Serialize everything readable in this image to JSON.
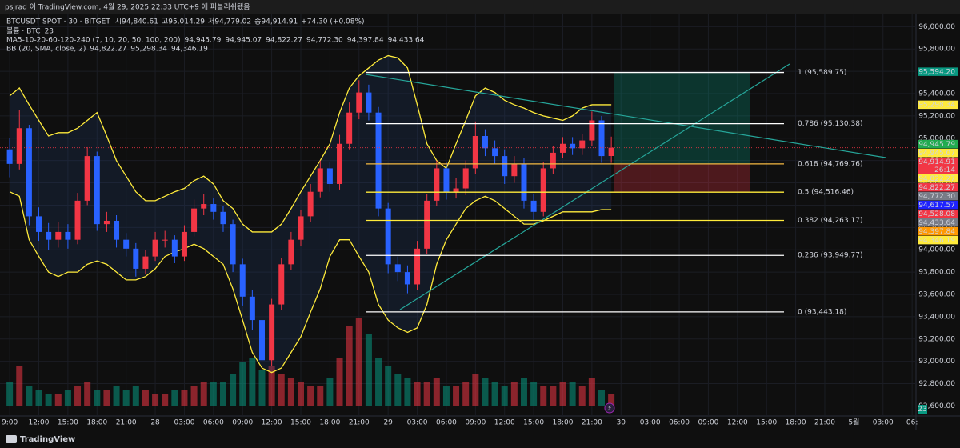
{
  "header": {
    "publisher": "psjrad 이 TradingView.com, 4월 29, 2025 22:33 UTC+9 에 퍼블리쉬됐음"
  },
  "legend": {
    "symbol": "BTCUSDT SPOT · 30 · BITGET",
    "ohlc": [
      {
        "label": "시",
        "value": "94,840.61"
      },
      {
        "label": "고",
        "value": "95,014.29"
      },
      {
        "label": "저",
        "value": "94,779.02"
      },
      {
        "label": "종",
        "value": "94,914.91"
      }
    ],
    "change": "+74.30 (+0.08%)",
    "volume": "볼륨 · BTC",
    "ma": {
      "name": "MA5-10-20-60-120-240 (7, 10, 20, 50, 100, 200)",
      "values": [
        {
          "text": "94,945.79",
          "color": "#22ab94"
        },
        {
          "text": "94,945.07",
          "color": "#ffeb3b"
        },
        {
          "text": "94,822.27",
          "color": "#f23645"
        },
        {
          "text": "94,772.30",
          "color": "#2a2e9a"
        },
        {
          "text": "94,397.84",
          "color": "#ff9800"
        },
        {
          "text": "94,433.64",
          "color": "#787b86"
        }
      ]
    },
    "bb": {
      "name": "BB (20, SMA, close, 2)",
      "values": [
        {
          "text": "94,822.27",
          "color": "#ffeb3b"
        },
        {
          "text": "95,298.34",
          "color": "#ffeb3b"
        },
        {
          "text": "94,346.19",
          "color": "#ffeb3b"
        }
      ]
    }
  },
  "chart_data": {
    "type": "candlestick",
    "up_color": "#f23645",
    "down_color": "#2962ff",
    "volume_up_color": "#f23645",
    "volume_down_color": "#089981",
    "bb_color": "#ffeb3b",
    "xlim": [
      -1,
      93.4
    ],
    "ylim": [
      92510,
      96110
    ],
    "volume_lim": [
      0,
      180
    ],
    "x": [
      0,
      1,
      2,
      3,
      4,
      5,
      6,
      7,
      8,
      9,
      10,
      11,
      12,
      13,
      14,
      15,
      16,
      17,
      18,
      19,
      20,
      21,
      22,
      23,
      24,
      25,
      26,
      27,
      28,
      29,
      30,
      31,
      32,
      33,
      34,
      35,
      36,
      37,
      38,
      39,
      40,
      41,
      42,
      43,
      44,
      45,
      46,
      47,
      48,
      49,
      50,
      51,
      52,
      53,
      54,
      55,
      56,
      57,
      58,
      59,
      60,
      61,
      62
    ],
    "open": [
      94900,
      94770,
      95090,
      94300,
      94160,
      94090,
      94160,
      94090,
      94440,
      94840,
      94230,
      94260,
      94090,
      94010,
      93830,
      93940,
      94090,
      94090,
      93940,
      94160,
      94370,
      94410,
      94340,
      94230,
      93870,
      93580,
      93370,
      93010,
      93510,
      93870,
      94090,
      94300,
      94520,
      94730,
      94590,
      94950,
      95230,
      95410,
      95230,
      94370,
      93870,
      93800,
      93690,
      94010,
      94440,
      94730,
      94520,
      94550,
      94730,
      95020,
      94910,
      94840,
      94660,
      94770,
      94440,
      94340,
      94730,
      94870,
      94950,
      94910,
      94980,
      95160,
      94840.61
    ],
    "high": [
      95000,
      95250,
      95120,
      94380,
      94240,
      94250,
      94230,
      94510,
      94920,
      94880,
      94340,
      94310,
      94150,
      94060,
      94000,
      94160,
      94170,
      94130,
      94220,
      94450,
      94500,
      94460,
      94390,
      94270,
      93920,
      93640,
      93430,
      93560,
      93930,
      94160,
      94360,
      94590,
      94800,
      94790,
      95030,
      95320,
      95520,
      95480,
      95280,
      94420,
      93940,
      93860,
      94080,
      94500,
      94800,
      94790,
      94640,
      94800,
      95150,
      95080,
      94980,
      94900,
      94840,
      94820,
      94500,
      94790,
      94930,
      95010,
      95010,
      95040,
      95240,
      95200,
      95014.29
    ],
    "low": [
      94650,
      94720,
      94220,
      94080,
      94000,
      94020,
      94010,
      94050,
      94400,
      94170,
      94160,
      94020,
      93940,
      93760,
      93780,
      93900,
      94020,
      93880,
      93900,
      94120,
      94310,
      94270,
      94160,
      93800,
      93500,
      93280,
      92920,
      92960,
      93460,
      93820,
      94030,
      94250,
      94470,
      94520,
      94540,
      94900,
      95170,
      95160,
      94300,
      93790,
      93720,
      93610,
      93640,
      93960,
      94390,
      94450,
      94460,
      94490,
      94680,
      94840,
      94770,
      94590,
      94600,
      94370,
      94270,
      94300,
      94680,
      94820,
      94850,
      94850,
      94930,
      94780,
      94779.02
    ],
    "close": [
      94770,
      95090,
      94300,
      94160,
      94090,
      94160,
      94090,
      94440,
      94840,
      94230,
      94260,
      94090,
      94010,
      93830,
      93940,
      94090,
      94090,
      93940,
      94160,
      94370,
      94410,
      94340,
      94230,
      93870,
      93580,
      93370,
      93010,
      93510,
      93870,
      94090,
      94300,
      94520,
      94730,
      94590,
      94950,
      95230,
      95410,
      95230,
      94370,
      93870,
      93800,
      93690,
      94010,
      94440,
      94730,
      94520,
      94550,
      94730,
      95020,
      94910,
      94840,
      94660,
      94770,
      94440,
      94340,
      94730,
      94870,
      94950,
      94910,
      94980,
      95160,
      94840,
      94914.91
    ],
    "volume": [
      48,
      80,
      40,
      32,
      24,
      24,
      32,
      40,
      48,
      32,
      32,
      40,
      32,
      40,
      32,
      24,
      24,
      32,
      32,
      40,
      48,
      48,
      48,
      64,
      88,
      96,
      72,
      80,
      64,
      56,
      48,
      40,
      40,
      56,
      96,
      160,
      176,
      144,
      96,
      80,
      64,
      56,
      48,
      48,
      56,
      40,
      40,
      48,
      64,
      56,
      48,
      40,
      48,
      56,
      48,
      40,
      40,
      48,
      48,
      40,
      56,
      32,
      23
    ],
    "bb_upper": [
      95380,
      95450,
      95300,
      95160,
      95020,
      95050,
      95050,
      95090,
      95160,
      95230,
      95020,
      94800,
      94660,
      94520,
      94440,
      94440,
      94480,
      94520,
      94550,
      94620,
      94660,
      94590,
      94440,
      94370,
      94230,
      94160,
      94160,
      94160,
      94230,
      94370,
      94520,
      94660,
      94800,
      94950,
      95230,
      95450,
      95560,
      95630,
      95700,
      95740,
      95720,
      95630,
      95300,
      94950,
      94800,
      94730,
      94950,
      95160,
      95380,
      95450,
      95410,
      95340,
      95300,
      95270,
      95230,
      95200,
      95180,
      95160,
      95200,
      95270,
      95300,
      95300,
      95300
    ],
    "bb_lower": [
      94520,
      94480,
      94090,
      93940,
      93800,
      93760,
      93800,
      93800,
      93870,
      93900,
      93870,
      93800,
      93730,
      93730,
      93760,
      93830,
      93940,
      93980,
      94010,
      94050,
      94010,
      93940,
      93870,
      93650,
      93370,
      93080,
      92940,
      92900,
      92940,
      93080,
      93220,
      93440,
      93650,
      93940,
      94090,
      94090,
      93940,
      93800,
      93510,
      93370,
      93300,
      93260,
      93300,
      93510,
      93870,
      94090,
      94230,
      94370,
      94440,
      94480,
      94440,
      94370,
      94300,
      94230,
      94230,
      94260,
      94300,
      94340,
      94340,
      94340,
      94340,
      94360,
      94360
    ],
    "yticks": [
      {
        "value": 96000,
        "label": "96,000.00"
      },
      {
        "value": 95800,
        "label": "95,800.00"
      },
      {
        "value": 95600,
        "label": "95,600.00"
      },
      {
        "value": 95400,
        "label": "95,400.00"
      },
      {
        "value": 95200,
        "label": "95,200.00"
      },
      {
        "value": 95000,
        "label": "95,000.00"
      },
      {
        "value": 94800,
        "label": "94,800.00"
      },
      {
        "value": 94600,
        "label": "94,600.00"
      },
      {
        "value": 94400,
        "label": "94,400.00"
      },
      {
        "value": 94200,
        "label": "94,200.00"
      },
      {
        "value": 94000,
        "label": "94,000.00"
      },
      {
        "value": 93800,
        "label": "93,800.00"
      },
      {
        "value": 93600,
        "label": "93,600.00"
      },
      {
        "value": 93400,
        "label": "93,400.00"
      },
      {
        "value": 93200,
        "label": "93,200.00"
      },
      {
        "value": 93000,
        "label": "93,000.00"
      },
      {
        "value": 92800,
        "label": "92,800.00"
      },
      {
        "value": 92600,
        "label": "92,600.00"
      }
    ],
    "xticks": [
      {
        "value": 0,
        "label": "9:00"
      },
      {
        "value": 3,
        "label": "12:00"
      },
      {
        "value": 6,
        "label": "15:00"
      },
      {
        "value": 9,
        "label": "18:00"
      },
      {
        "value": 12,
        "label": "21:00"
      },
      {
        "value": 15,
        "label": "28"
      },
      {
        "value": 18,
        "label": "03:00"
      },
      {
        "value": 21,
        "label": "06:00"
      },
      {
        "value": 24,
        "label": "09:00"
      },
      {
        "value": 27,
        "label": "12:00"
      },
      {
        "value": 30,
        "label": "15:00"
      },
      {
        "value": 33,
        "label": "18:00"
      },
      {
        "value": 36,
        "label": "21:00"
      },
      {
        "value": 39,
        "label": "29"
      },
      {
        "value": 42,
        "label": "03:00"
      },
      {
        "value": 45,
        "label": "06:00"
      },
      {
        "value": 48,
        "label": "09:00"
      },
      {
        "value": 51,
        "label": "12:00"
      },
      {
        "value": 54,
        "label": "15:00"
      },
      {
        "value": 57,
        "label": "18:00"
      },
      {
        "value": 60,
        "label": "21:00"
      },
      {
        "value": 63,
        "label": "30"
      },
      {
        "value": 66,
        "label": "03:00"
      },
      {
        "value": 69,
        "label": "06:00"
      },
      {
        "value": 72,
        "label": "09:00"
      },
      {
        "value": 75,
        "label": "12:00"
      },
      {
        "value": 78,
        "label": "15:00"
      },
      {
        "value": 81,
        "label": "18:00"
      },
      {
        "value": 84,
        "label": "21:00"
      },
      {
        "value": 87,
        "label": "5월"
      },
      {
        "value": 90,
        "label": "03:00"
      },
      {
        "value": 93,
        "label": "06:"
      }
    ],
    "fib_levels": [
      {
        "value": 95589.75,
        "label": "1 (95,589.75)",
        "color": "#ffffff"
      },
      {
        "value": 95130.38,
        "label": "0.786 (95,130.38)",
        "color": "#ffffff"
      },
      {
        "value": 94769.76,
        "label": "0.618 (94,769.76)",
        "color": "#f5b942"
      },
      {
        "value": 94516.46,
        "label": "0.5 (94,516.46)",
        "color": "#ffeb3b"
      },
      {
        "value": 94263.17,
        "label": "0.382 (94,263.17)",
        "color": "#ffeb3b"
      },
      {
        "value": 93949.77,
        "label": "0.236 (93,949.77)",
        "color": "#ffffff"
      },
      {
        "value": 93443.18,
        "label": "0 (93,443.18)",
        "color": "#ffffff"
      }
    ],
    "countdown": "26:14",
    "price_labels": [
      {
        "value": 95594.2,
        "label": "95,594.20",
        "color": "#089981",
        "text_color": "#ffffff"
      },
      {
        "value": 95298.34,
        "label": "95,298.34",
        "color": "#ffeb3b",
        "text_color": "#000000"
      },
      {
        "value": 94945.79,
        "label": "94,945.79",
        "color": "#22ab50",
        "text_color": "#ffffff"
      },
      {
        "value": 94945.07,
        "label": "94,945.07",
        "color": "#ffeb3b",
        "text_color": "#000000"
      },
      {
        "value": 94914.91,
        "label": "94,914.91",
        "color": "#f23645",
        "text_color": "#ffffff",
        "countdown": true
      },
      {
        "value": 94822.27,
        "label": "94,822.27",
        "color": "#ffeb3b",
        "text_color": "#000000"
      },
      {
        "value": 94822.27,
        "label": "94,822.27",
        "color": "#f23645",
        "text_color": "#ffffff"
      },
      {
        "value": 94772.3,
        "label": "94,772.30",
        "color": "#787b86",
        "text_color": "#ffffff"
      },
      {
        "value": 94617.57,
        "label": "94,617.57",
        "color": "#1e22ff",
        "text_color": "#ffffff"
      },
      {
        "value": 94528.08,
        "label": "94,528.08",
        "color": "#f23645",
        "text_color": "#ffffff"
      },
      {
        "value": 94433.64,
        "label": "94,433.64",
        "color": "#787b86",
        "text_color": "#ffffff"
      },
      {
        "value": 94397.84,
        "label": "94,397.84",
        "color": "#ff9800",
        "text_color": "#000000"
      },
      {
        "value": 94346.19,
        "label": "94,346.19",
        "color": "#ffeb3b",
        "text_color": "#000000"
      }
    ]
  },
  "footer": {
    "brand": "TradingView"
  }
}
